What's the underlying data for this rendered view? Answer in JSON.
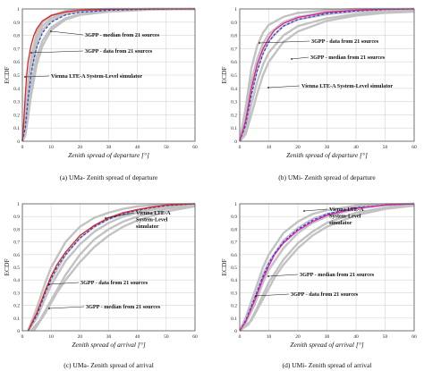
{
  "chart_data": [
    {
      "type": "line",
      "caption": "(a) UMa- Zenith spread of departure",
      "xlabel": "Zenith spread of departure [°]",
      "ylabel": "ECDF",
      "xlim": [
        0,
        60
      ],
      "ylim": [
        0,
        1
      ],
      "xticks": [
        "0",
        "10",
        "20",
        "30",
        "40",
        "50",
        "60"
      ],
      "yticks": [
        "0",
        "0.1",
        "0.2",
        "0.3",
        "0.4",
        "0.5",
        "0.6",
        "0.7",
        "0.8",
        "0.9",
        "1"
      ],
      "grid": true,
      "gray_source_curves": [
        {
          "x": [
            0,
            1,
            2,
            3,
            5,
            7,
            10,
            15,
            20,
            30,
            45,
            60
          ],
          "y": [
            0,
            0.12,
            0.38,
            0.58,
            0.78,
            0.87,
            0.93,
            0.97,
            0.985,
            0.995,
            1,
            1
          ]
        },
        {
          "x": [
            0,
            1,
            2,
            3,
            5,
            7,
            10,
            15,
            20,
            30,
            45,
            60
          ],
          "y": [
            0,
            0.07,
            0.25,
            0.42,
            0.64,
            0.76,
            0.86,
            0.93,
            0.96,
            0.985,
            0.997,
            1
          ]
        },
        {
          "x": [
            0,
            1,
            2,
            3,
            5,
            7,
            10,
            15,
            20,
            30,
            45,
            60
          ],
          "y": [
            0,
            0.18,
            0.45,
            0.63,
            0.82,
            0.9,
            0.95,
            0.985,
            0.995,
            1,
            1,
            1
          ]
        },
        {
          "x": [
            0,
            1,
            2,
            3,
            5,
            7,
            10,
            15,
            20,
            30,
            45,
            60
          ],
          "y": [
            0,
            0.04,
            0.18,
            0.34,
            0.58,
            0.72,
            0.84,
            0.92,
            0.955,
            0.98,
            0.995,
            1
          ]
        },
        {
          "x": [
            0,
            1,
            2,
            3,
            5,
            7,
            10,
            15,
            20,
            30,
            45,
            60
          ],
          "y": [
            0,
            0.1,
            0.33,
            0.52,
            0.73,
            0.84,
            0.91,
            0.96,
            0.98,
            0.993,
            1,
            1
          ]
        }
      ],
      "series": [
        {
          "name": "3GPP - median from 21 sources",
          "color": "#1f3fd8",
          "dash": true,
          "x": [
            0,
            1,
            2,
            3,
            4,
            5,
            7,
            10,
            15,
            20,
            30,
            45,
            60
          ],
          "y": [
            0,
            0.1,
            0.32,
            0.5,
            0.62,
            0.71,
            0.82,
            0.9,
            0.955,
            0.975,
            0.99,
            0.998,
            1
          ]
        },
        {
          "name": "Vienna LTE-A System-Level simulator",
          "color": "#e02020",
          "dash": false,
          "x": [
            0,
            0.5,
            1,
            1.5,
            2,
            3,
            4,
            5,
            7,
            10,
            15,
            20,
            30,
            45,
            60
          ],
          "y": [
            0,
            0.15,
            0.34,
            0.5,
            0.6,
            0.72,
            0.8,
            0.85,
            0.91,
            0.95,
            0.978,
            0.99,
            0.997,
            1,
            1
          ]
        }
      ],
      "annotations": [
        "3GPP - median from 21 sources",
        "3GPP - data from 21 sources",
        "Vienna LTE-A System-Level simulator"
      ]
    },
    {
      "type": "line",
      "caption": "(b) UMi- Zenith spread of departure",
      "xlabel": "Zenith spread of departure [°]",
      "ylabel": "ECDF",
      "xlim": [
        0,
        60
      ],
      "ylim": [
        0,
        1
      ],
      "xticks": [
        "0",
        "10",
        "20",
        "30",
        "40",
        "50",
        "60"
      ],
      "yticks": [
        "0",
        "0.1",
        "0.2",
        "0.3",
        "0.4",
        "0.5",
        "0.6",
        "0.7",
        "0.8",
        "0.9",
        "1"
      ],
      "grid": true,
      "gray_source_curves": [
        {
          "x": [
            0,
            2,
            4,
            6,
            8,
            10,
            15,
            20,
            30,
            40,
            50,
            60
          ],
          "y": [
            0,
            0.18,
            0.45,
            0.62,
            0.74,
            0.81,
            0.9,
            0.94,
            0.975,
            0.99,
            0.998,
            1
          ]
        },
        {
          "x": [
            0,
            2,
            4,
            6,
            8,
            10,
            15,
            20,
            30,
            40,
            50,
            60
          ],
          "y": [
            0,
            0.08,
            0.28,
            0.45,
            0.58,
            0.67,
            0.8,
            0.87,
            0.93,
            0.96,
            0.98,
            0.99
          ]
        },
        {
          "x": [
            0,
            2,
            4,
            6,
            8,
            10,
            15,
            20,
            30,
            40,
            50,
            60
          ],
          "y": [
            0,
            0.25,
            0.55,
            0.72,
            0.82,
            0.88,
            0.94,
            0.97,
            0.99,
            1,
            1,
            1
          ]
        },
        {
          "x": [
            0,
            2,
            4,
            6,
            8,
            10,
            15,
            20,
            30,
            40,
            50,
            60
          ],
          "y": [
            0,
            0.05,
            0.2,
            0.36,
            0.5,
            0.6,
            0.75,
            0.83,
            0.91,
            0.95,
            0.97,
            0.98
          ]
        },
        {
          "x": [
            0,
            2,
            4,
            6,
            8,
            10,
            15,
            20,
            30,
            40,
            50,
            60
          ],
          "y": [
            0,
            0.12,
            0.36,
            0.54,
            0.67,
            0.76,
            0.87,
            0.92,
            0.96,
            0.98,
            0.99,
            1
          ]
        }
      ],
      "series": [
        {
          "name": "3GPP - median from 21 sources",
          "color": "#1f3fd8",
          "dash": true,
          "x": [
            0,
            2,
            4,
            6,
            8,
            10,
            12,
            15,
            20,
            30,
            40,
            50,
            60
          ],
          "y": [
            0,
            0.12,
            0.35,
            0.53,
            0.66,
            0.75,
            0.81,
            0.87,
            0.92,
            0.965,
            0.985,
            0.995,
            1
          ]
        },
        {
          "name": "Vienna LTE-A System-Level simulator",
          "color": "#e02090",
          "dash": false,
          "x": [
            0,
            2,
            4,
            6,
            8,
            10,
            12,
            15,
            20,
            30,
            40,
            50,
            60
          ],
          "y": [
            0,
            0.15,
            0.4,
            0.58,
            0.7,
            0.78,
            0.84,
            0.89,
            0.935,
            0.975,
            0.99,
            0.998,
            1
          ]
        }
      ],
      "annotations": [
        "3GPP - data from 21 sources",
        "3GPP - median from 21 sources",
        "Vienna LTE-A System-Level simulator"
      ]
    },
    {
      "type": "line",
      "caption": "(c) UMa- Zenith spread of arrival",
      "xlabel": "Zenith spread of arrival [°]",
      "ylabel": "ECDF",
      "xlim": [
        0,
        60
      ],
      "ylim": [
        0,
        1
      ],
      "xticks": [
        "0",
        "10",
        "20",
        "30",
        "40",
        "50",
        "60"
      ],
      "yticks": [
        "0",
        "0.1",
        "0.2",
        "0.3",
        "0.4",
        "0.5",
        "0.6",
        "0.7",
        "0.8",
        "0.9",
        "1"
      ],
      "grid": true,
      "gray_source_curves": [
        {
          "x": [
            2,
            5,
            8,
            10,
            15,
            20,
            25,
            30,
            35,
            40,
            50,
            60
          ],
          "y": [
            0,
            0.12,
            0.3,
            0.4,
            0.6,
            0.73,
            0.82,
            0.88,
            0.92,
            0.95,
            0.98,
            1
          ]
        },
        {
          "x": [
            3,
            6,
            10,
            15,
            20,
            25,
            30,
            35,
            40,
            50,
            60
          ],
          "y": [
            0,
            0.08,
            0.24,
            0.44,
            0.6,
            0.72,
            0.8,
            0.86,
            0.9,
            0.96,
            0.99
          ]
        },
        {
          "x": [
            2,
            5,
            8,
            10,
            15,
            20,
            25,
            30,
            35,
            40,
            50,
            60
          ],
          "y": [
            0,
            0.18,
            0.38,
            0.5,
            0.7,
            0.82,
            0.89,
            0.93,
            0.96,
            0.98,
            0.995,
            1
          ]
        },
        {
          "x": [
            4,
            8,
            12,
            15,
            20,
            25,
            30,
            35,
            40,
            50,
            60
          ],
          "y": [
            0,
            0.14,
            0.3,
            0.4,
            0.54,
            0.66,
            0.75,
            0.82,
            0.87,
            0.94,
            0.98
          ]
        },
        {
          "x": [
            2,
            5,
            8,
            10,
            15,
            20,
            25,
            30,
            35,
            40,
            50,
            60
          ],
          "y": [
            0,
            0.1,
            0.26,
            0.36,
            0.55,
            0.68,
            0.78,
            0.85,
            0.9,
            0.93,
            0.975,
            0.995
          ]
        }
      ],
      "series": [
        {
          "name": "3GPP - median from 21 sources",
          "color": "#1f3fd8",
          "dash": true,
          "x": [
            2,
            5,
            8,
            10,
            12,
            15,
            20,
            25,
            30,
            35,
            40,
            45,
            50,
            60
          ],
          "y": [
            0,
            0.12,
            0.3,
            0.41,
            0.5,
            0.6,
            0.73,
            0.82,
            0.88,
            0.92,
            0.95,
            0.97,
            0.985,
            1
          ]
        },
        {
          "name": "Vienna LTE-A System-Level simulator",
          "color": "#e02020",
          "dash": false,
          "x": [
            2,
            5,
            8,
            10,
            12,
            15,
            20,
            25,
            30,
            35,
            40,
            45,
            50,
            60
          ],
          "y": [
            0,
            0.14,
            0.32,
            0.43,
            0.52,
            0.62,
            0.75,
            0.83,
            0.89,
            0.93,
            0.955,
            0.975,
            0.99,
            1
          ]
        }
      ],
      "annotations": [
        "Vienna LTE-A System-Level simulator",
        "3GPP - data from 21 sources",
        "3GPP - median from 21 sources"
      ]
    },
    {
      "type": "line",
      "caption": "(d) UMi- Zenith spread of arrival",
      "xlabel": "Zenith spread of arrival [°]",
      "ylabel": "ECDF",
      "xlim": [
        0,
        60
      ],
      "ylim": [
        0,
        1
      ],
      "xticks": [
        "0",
        "10",
        "20",
        "30",
        "40",
        "50",
        "60"
      ],
      "yticks": [
        "0",
        "0.1",
        "0.2",
        "0.3",
        "0.4",
        "0.5",
        "0.6",
        "0.7",
        "0.8",
        "0.9",
        "1"
      ],
      "grid": true,
      "gray_source_curves": [
        {
          "x": [
            0,
            2,
            5,
            8,
            10,
            15,
            20,
            25,
            30,
            40,
            50,
            60
          ],
          "y": [
            0,
            0.06,
            0.2,
            0.38,
            0.48,
            0.65,
            0.77,
            0.85,
            0.9,
            0.96,
            0.99,
            1
          ]
        },
        {
          "x": [
            0,
            3,
            6,
            10,
            15,
            20,
            25,
            30,
            40,
            50,
            60
          ],
          "y": [
            0,
            0.05,
            0.18,
            0.38,
            0.56,
            0.69,
            0.78,
            0.85,
            0.93,
            0.97,
            0.99
          ]
        },
        {
          "x": [
            0,
            2,
            5,
            8,
            10,
            15,
            20,
            25,
            30,
            40,
            50,
            60
          ],
          "y": [
            0,
            0.1,
            0.3,
            0.5,
            0.6,
            0.77,
            0.86,
            0.92,
            0.95,
            0.985,
            0.997,
            1
          ]
        },
        {
          "x": [
            0,
            4,
            8,
            12,
            15,
            20,
            25,
            30,
            40,
            50,
            60
          ],
          "y": [
            0,
            0.08,
            0.25,
            0.42,
            0.52,
            0.65,
            0.75,
            0.82,
            0.91,
            0.96,
            0.985
          ]
        },
        {
          "x": [
            0,
            2,
            5,
            8,
            10,
            15,
            20,
            25,
            30,
            40,
            50,
            60
          ],
          "y": [
            0,
            0.08,
            0.25,
            0.44,
            0.54,
            0.71,
            0.81,
            0.88,
            0.92,
            0.97,
            0.99,
            1
          ]
        }
      ],
      "series": [
        {
          "name": "3GPP - median from 21 sources",
          "color": "#1f3fd8",
          "dash": true,
          "x": [
            0,
            2,
            5,
            8,
            10,
            12,
            15,
            20,
            25,
            30,
            40,
            50,
            60
          ],
          "y": [
            0,
            0.08,
            0.25,
            0.43,
            0.53,
            0.61,
            0.7,
            0.8,
            0.87,
            0.92,
            0.97,
            0.99,
            1
          ]
        },
        {
          "name": "Vienna LTE-A System-Level simulator",
          "color": "#e020b0",
          "dash": false,
          "x": [
            0,
            2,
            5,
            8,
            10,
            12,
            15,
            20,
            25,
            30,
            40,
            50,
            60
          ],
          "y": [
            0,
            0.07,
            0.23,
            0.41,
            0.51,
            0.6,
            0.69,
            0.79,
            0.86,
            0.91,
            0.965,
            0.99,
            1
          ]
        }
      ],
      "annotations": [
        "Vienna LTE-A System-Level simulator",
        "3GPP - median from 21 sources",
        "3GPP - data from 21 sources"
      ]
    }
  ]
}
